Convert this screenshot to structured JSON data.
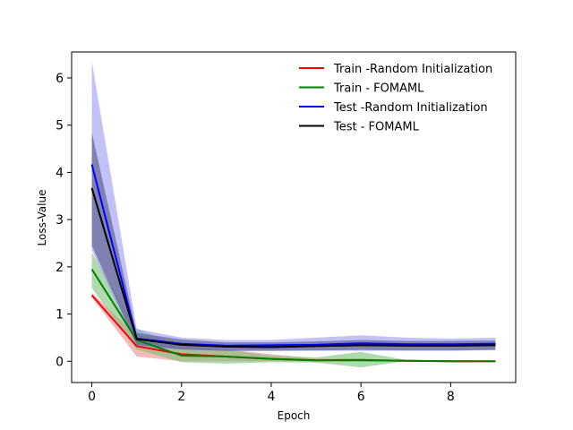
{
  "chart_data": {
    "type": "line",
    "title": "",
    "xlabel": "Epoch",
    "ylabel": "Loss-Value",
    "xlim": [
      -0.45,
      9.45
    ],
    "ylim": [
      -0.45,
      6.55
    ],
    "xticks": [
      0,
      2,
      4,
      6,
      8
    ],
    "yticks": [
      0,
      1,
      2,
      3,
      4,
      5,
      6
    ],
    "grid": false,
    "legend_position": "top-right",
    "x": [
      0,
      1,
      2,
      3,
      4,
      5,
      6,
      7,
      8,
      9
    ],
    "series": [
      {
        "name": "Train -Random Initialization",
        "color": "#ff0000",
        "band_color": "#f28c8c",
        "values": [
          1.4,
          0.32,
          0.15,
          0.1,
          0.05,
          0.02,
          0.02,
          0.01,
          0.0,
          0.0
        ],
        "lower": [
          1.35,
          0.1,
          0.0,
          0.0,
          0.0,
          0.0,
          0.0,
          0.0,
          0.0,
          0.0
        ],
        "upper": [
          1.45,
          0.55,
          0.35,
          0.25,
          0.15,
          0.06,
          0.05,
          0.03,
          0.01,
          0.01
        ]
      },
      {
        "name": "Train - FOMAML",
        "color": "#008000",
        "band_color": "#7ac27a",
        "values": [
          1.95,
          0.45,
          0.12,
          0.1,
          0.05,
          0.02,
          0.03,
          0.01,
          0.0,
          0.0
        ],
        "lower": [
          1.55,
          0.25,
          -0.02,
          -0.05,
          -0.02,
          -0.03,
          -0.13,
          0.0,
          -0.01,
          -0.01
        ],
        "upper": [
          2.3,
          0.7,
          0.3,
          0.25,
          0.12,
          0.08,
          0.2,
          0.03,
          0.02,
          0.01
        ]
      },
      {
        "name": "Test -Random Initialization",
        "color": "#0000ff",
        "band_color": "#9a9af5",
        "values": [
          4.17,
          0.48,
          0.37,
          0.33,
          0.34,
          0.35,
          0.38,
          0.36,
          0.36,
          0.37
        ],
        "lower": [
          2.35,
          0.3,
          0.25,
          0.22,
          0.22,
          0.22,
          0.22,
          0.22,
          0.22,
          0.24
        ],
        "upper": [
          6.35,
          0.68,
          0.5,
          0.45,
          0.45,
          0.5,
          0.55,
          0.5,
          0.48,
          0.5
        ]
      },
      {
        "name": "Test - FOMAML",
        "color": "#000000",
        "band_color": "#555580",
        "values": [
          3.67,
          0.47,
          0.35,
          0.31,
          0.3,
          0.32,
          0.34,
          0.33,
          0.33,
          0.34
        ],
        "lower": [
          2.45,
          0.35,
          0.25,
          0.22,
          0.22,
          0.23,
          0.24,
          0.23,
          0.23,
          0.24
        ],
        "upper": [
          4.85,
          0.6,
          0.46,
          0.4,
          0.4,
          0.42,
          0.45,
          0.43,
          0.43,
          0.44
        ]
      }
    ]
  }
}
